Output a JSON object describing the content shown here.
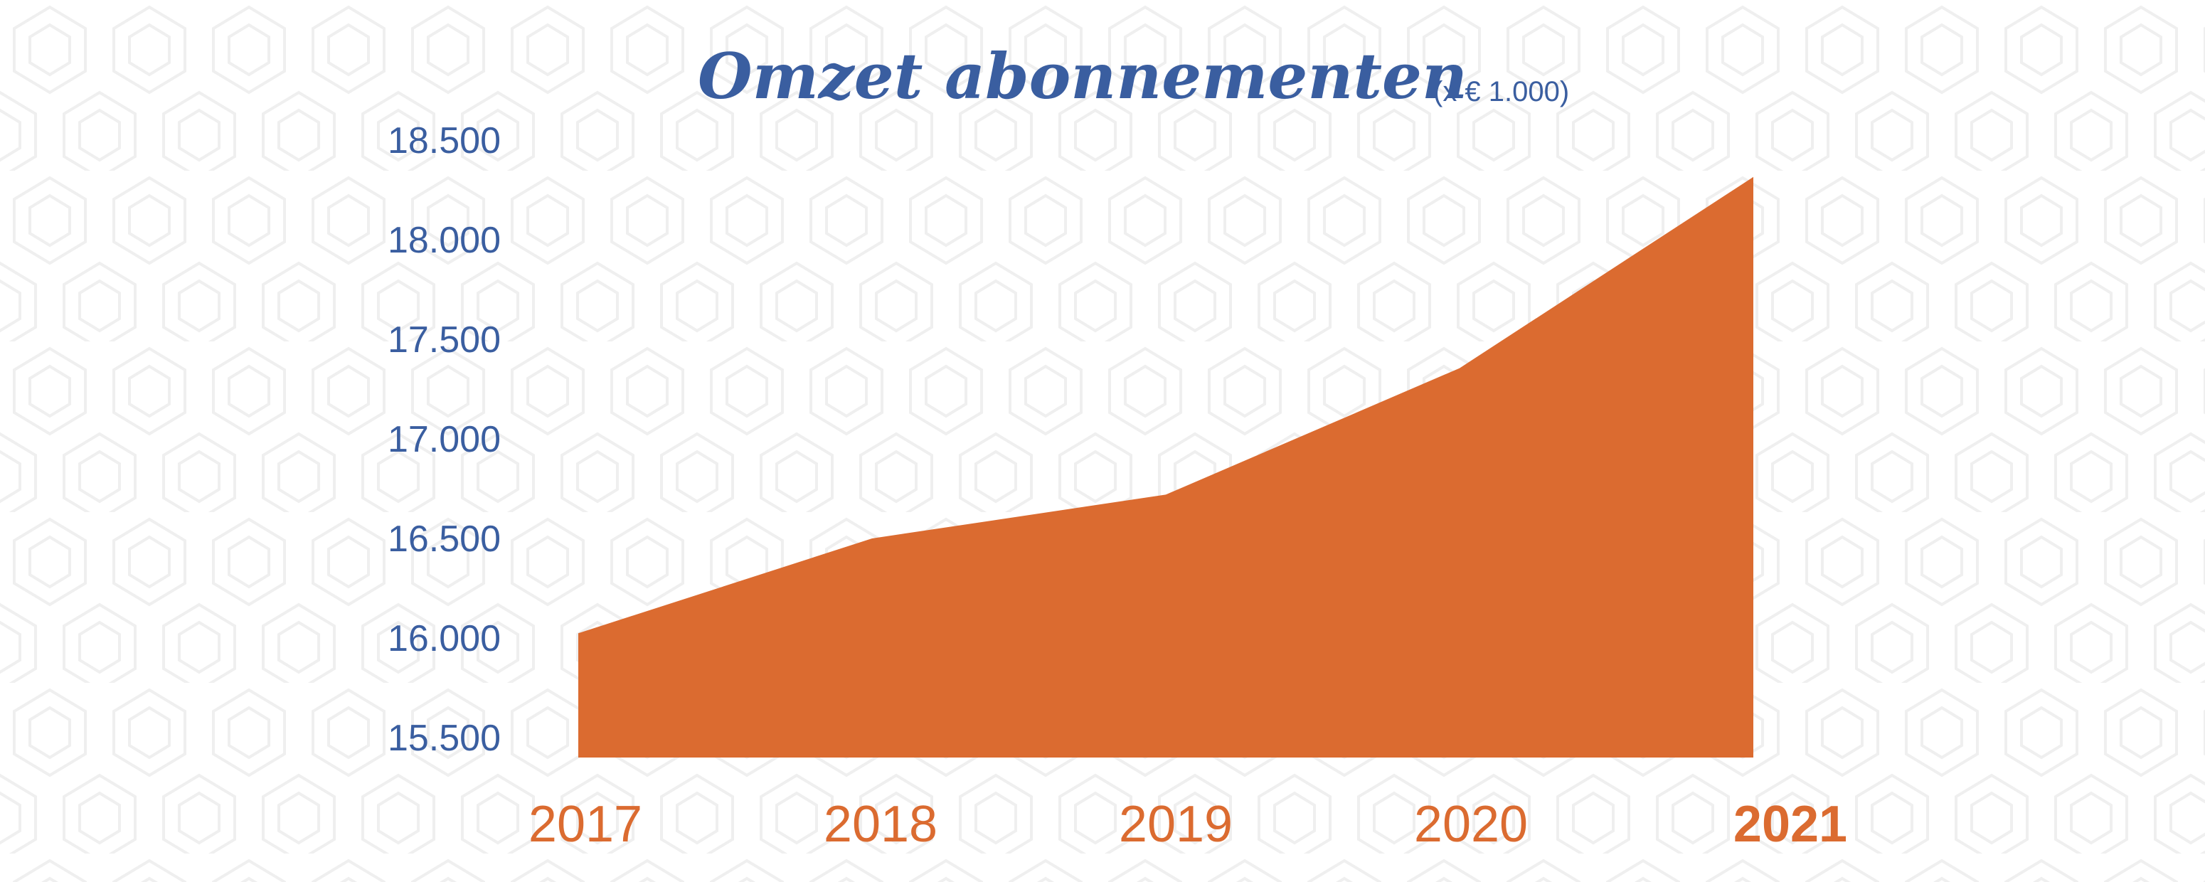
{
  "chart_data": {
    "type": "area",
    "title": "Omzet abonnementen",
    "unit_label": "(x € 1.000)",
    "categories": [
      "2017",
      "2018",
      "2019",
      "2020",
      "2021"
    ],
    "highlighted_category": "2021",
    "values": [
      16024,
      16500,
      16720,
      17355,
      18315
    ],
    "ylim": [
      15400,
      18500
    ],
    "yticks": [
      15500,
      16000,
      16500,
      17000,
      17500,
      18000,
      18500
    ],
    "ytick_labels": [
      "15.500",
      "16.000",
      "16.500",
      "17.000",
      "17.500",
      "18.000",
      "18.500"
    ],
    "grid": false,
    "legend": "none",
    "colors": {
      "area": "#db6b30",
      "text_blue": "#3a5ea0",
      "pattern": "#efefef"
    }
  }
}
